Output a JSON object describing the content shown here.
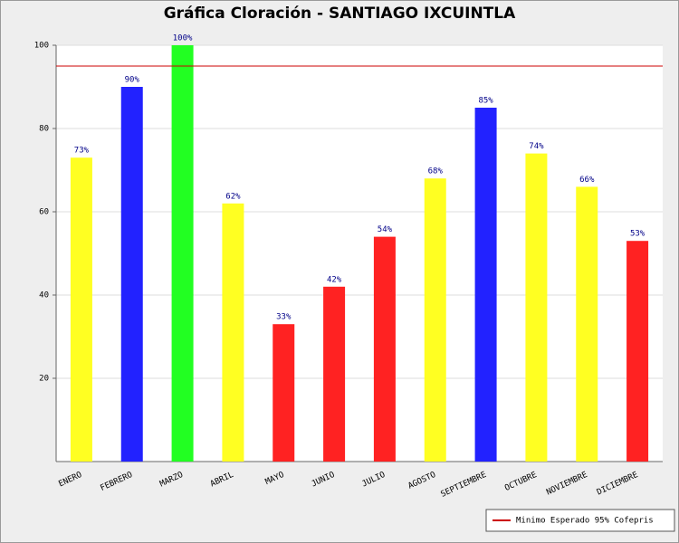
{
  "chart_data": {
    "type": "bar",
    "title": "Gráfica Cloración - SANTIAGO IXCUINTLA",
    "categories": [
      "ENERO",
      "FEBRERO",
      "MARZO",
      "ABRIL",
      "MAYO",
      "JUNIO",
      "JULIO",
      "AGOSTO",
      "SEPTIEMBRE",
      "OCTUBRE",
      "NOVIEMBRE",
      "DICIEMBRE"
    ],
    "values": [
      73,
      90,
      100,
      62,
      33,
      42,
      54,
      68,
      85,
      74,
      66,
      53
    ],
    "value_labels": [
      "73%",
      "90%",
      "100%",
      "62%",
      "33%",
      "42%",
      "54%",
      "68%",
      "85%",
      "74%",
      "66%",
      "53%"
    ],
    "colors": [
      "#ffff22",
      "#2222ff",
      "#22ff22",
      "#ffff22",
      "#ff2222",
      "#ff2222",
      "#ff2222",
      "#ffff22",
      "#2222ff",
      "#ffff22",
      "#ffff22",
      "#ff2222"
    ],
    "ylim": [
      0,
      100
    ],
    "yticks": [
      20,
      40,
      60,
      80,
      100
    ],
    "grid": true,
    "reference_line": {
      "value": 95,
      "color": "#cc0000",
      "label": "Minimo Esperado 95% Cofepris"
    },
    "legend": "bottom-right"
  }
}
